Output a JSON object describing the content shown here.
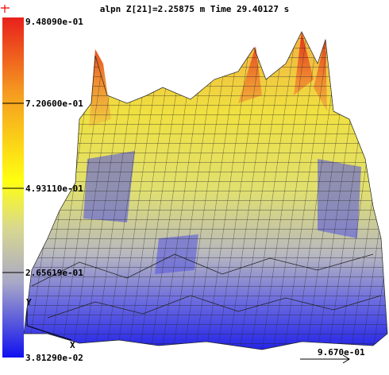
{
  "header": {
    "title": "alpn Z[21]=2.25875 m Time 29.40127 s"
  },
  "colorbar": {
    "labels": [
      "9.48090e-01",
      "7.20600e-01",
      "4.93110e-01",
      "2.65619e-01",
      "3.81290e-02"
    ]
  },
  "axes": {
    "y_label": "Y",
    "x_label": "X"
  },
  "scale": {
    "label": "9.670e-01"
  }
}
